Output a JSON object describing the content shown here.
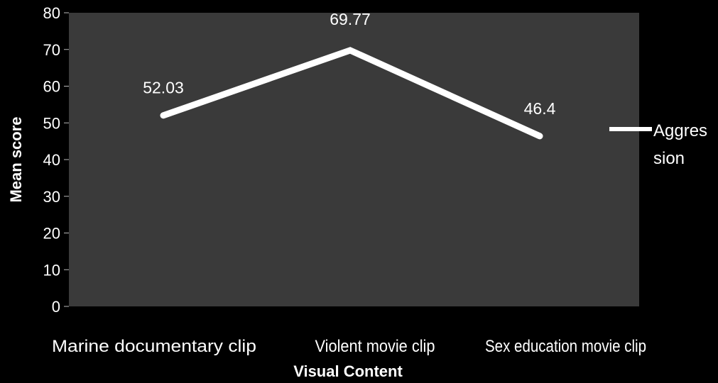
{
  "chart_data": {
    "type": "line",
    "categories": [
      "Marine documentary clip",
      "Violent movie clip",
      "Sex education movie clip"
    ],
    "series": [
      {
        "name": "Aggression",
        "values": [
          52.03,
          69.77,
          46.4
        ]
      }
    ],
    "data_labels": [
      "52.03",
      "69.77",
      "46.4"
    ],
    "xlabel": "Visual Content",
    "ylabel": "Mean score",
    "ylim": [
      0,
      80
    ],
    "yticks": [
      "0",
      "10",
      "20",
      "30",
      "40",
      "50",
      "60",
      "70",
      "80"
    ],
    "legend": {
      "position": "right",
      "lines": [
        "Aggres",
        "sion"
      ]
    },
    "grid": false,
    "colors": {
      "background": "#000000",
      "plot_area": "#3a3a3a",
      "line": "#ffffff",
      "text": "#ffffff"
    }
  }
}
